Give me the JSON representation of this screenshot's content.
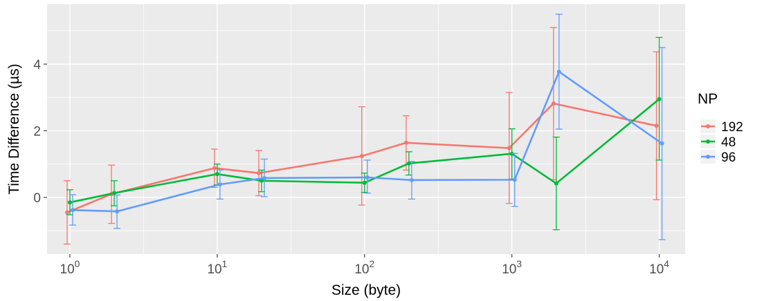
{
  "chart_data": {
    "type": "line",
    "xlabel": "Size (byte)",
    "ylabel": "Time Difference (µs)",
    "x_scale": "log10",
    "xlim": [
      0.7,
      15000
    ],
    "ylim": [
      -1.7,
      5.8
    ],
    "x_ticks": [
      {
        "value": 1,
        "base": "10",
        "exp": "0"
      },
      {
        "value": 10,
        "base": "10",
        "exp": "1"
      },
      {
        "value": 100,
        "base": "10",
        "exp": "2"
      },
      {
        "value": 1000,
        "base": "10",
        "exp": "3"
      },
      {
        "value": 10000,
        "base": "10",
        "exp": "4"
      }
    ],
    "y_ticks": [
      0,
      2,
      4
    ],
    "y_minor": [
      -1,
      1,
      3,
      5
    ],
    "x_minor": [
      3.162,
      31.62,
      316.2,
      3162
    ],
    "legend": {
      "title": "NP",
      "position": "right"
    },
    "grid": true,
    "series": [
      {
        "name": "192",
        "color": "#F8766D",
        "points": [
          {
            "x": 1,
            "y": -0.45,
            "ymin": -1.4,
            "ymax": 0.5
          },
          {
            "x": 2,
            "y": 0.1,
            "ymin": -0.78,
            "ymax": 0.97
          },
          {
            "x": 10,
            "y": 0.88,
            "ymin": 0.3,
            "ymax": 1.45
          },
          {
            "x": 20,
            "y": 0.73,
            "ymin": 0.05,
            "ymax": 1.41
          },
          {
            "x": 100,
            "y": 1.24,
            "ymin": -0.23,
            "ymax": 2.72
          },
          {
            "x": 200,
            "y": 1.64,
            "ymin": 0.82,
            "ymax": 2.45
          },
          {
            "x": 1000,
            "y": 1.48,
            "ymin": -0.18,
            "ymax": 3.15
          },
          {
            "x": 2000,
            "y": 2.82,
            "ymin": 0.53,
            "ymax": 5.1
          },
          {
            "x": 10000,
            "y": 2.15,
            "ymin": -0.07,
            "ymax": 4.37
          }
        ]
      },
      {
        "name": "48",
        "color": "#00BA38",
        "points": [
          {
            "x": 1,
            "y": -0.15,
            "ymin": -0.52,
            "ymax": 0.23
          },
          {
            "x": 2,
            "y": 0.13,
            "ymin": -0.25,
            "ymax": 0.5
          },
          {
            "x": 10,
            "y": 0.7,
            "ymin": 0.38,
            "ymax": 1.0
          },
          {
            "x": 20,
            "y": 0.5,
            "ymin": 0.17,
            "ymax": 0.82
          },
          {
            "x": 100,
            "y": 0.44,
            "ymin": 0.15,
            "ymax": 0.73
          },
          {
            "x": 200,
            "y": 1.02,
            "ymin": 0.67,
            "ymax": 1.37
          },
          {
            "x": 1000,
            "y": 1.31,
            "ymin": 0.55,
            "ymax": 2.06
          },
          {
            "x": 2000,
            "y": 0.42,
            "ymin": -0.97,
            "ymax": 1.81
          },
          {
            "x": 10000,
            "y": 2.95,
            "ymin": 1.12,
            "ymax": 4.8
          }
        ]
      },
      {
        "name": "96",
        "color": "#619CFF",
        "points": [
          {
            "x": 1,
            "y": -0.38,
            "ymin": -0.83,
            "ymax": 0.08
          },
          {
            "x": 2,
            "y": -0.42,
            "ymin": -0.93,
            "ymax": 0.07
          },
          {
            "x": 10,
            "y": 0.39,
            "ymin": -0.05,
            "ymax": 0.82
          },
          {
            "x": 20,
            "y": 0.58,
            "ymin": 0.02,
            "ymax": 1.15
          },
          {
            "x": 100,
            "y": 0.6,
            "ymin": 0.13,
            "ymax": 1.12
          },
          {
            "x": 200,
            "y": 0.52,
            "ymin": -0.05,
            "ymax": 1.08
          },
          {
            "x": 1000,
            "y": 0.53,
            "ymin": -0.27,
            "ymax": 1.32
          },
          {
            "x": 2000,
            "y": 3.77,
            "ymin": 2.05,
            "ymax": 5.5
          },
          {
            "x": 10000,
            "y": 1.62,
            "ymin": -1.27,
            "ymax": 4.5
          }
        ]
      }
    ]
  }
}
